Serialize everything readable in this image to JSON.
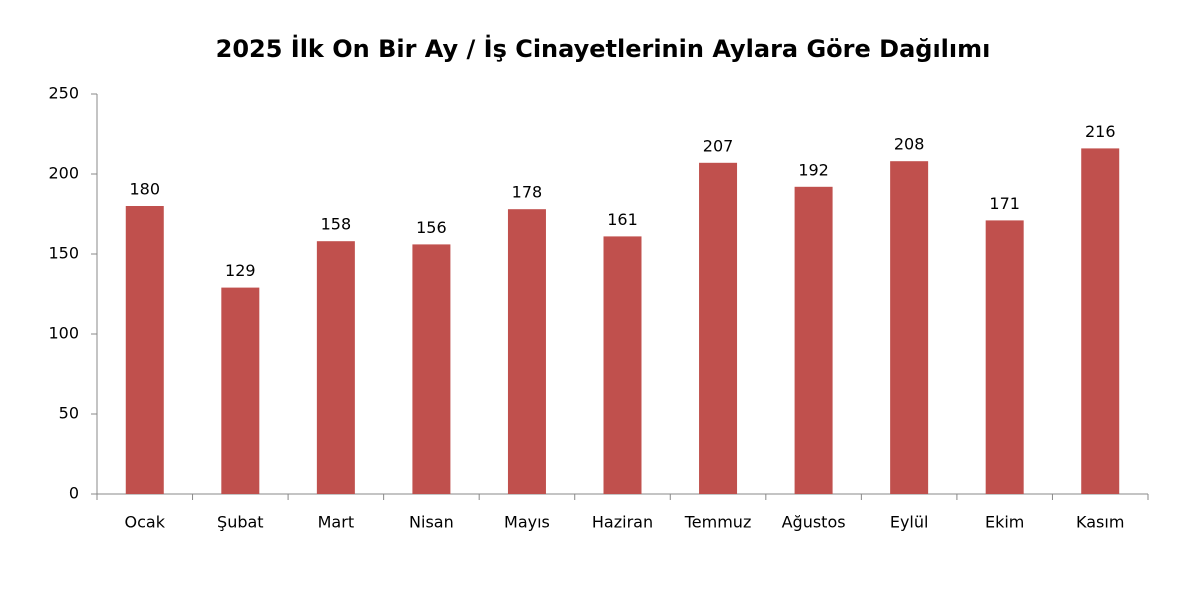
{
  "chart_data": {
    "type": "bar",
    "title": "2025 İlk On Bir Ay / İş Cinayetlerinin Aylara Göre Dağılımı",
    "categories": [
      "Ocak",
      "Şubat",
      "Mart",
      "Nisan",
      "Mayıs",
      "Haziran",
      "Temmuz",
      "Ağustos",
      "Eylül",
      "Ekim",
      "Kasım"
    ],
    "values": [
      180,
      129,
      158,
      156,
      178,
      161,
      207,
      192,
      208,
      171,
      216
    ],
    "color": "#c0504d",
    "ylim": [
      0,
      250
    ],
    "yticks": [
      0,
      50,
      100,
      150,
      200,
      250
    ],
    "grid": false
  }
}
